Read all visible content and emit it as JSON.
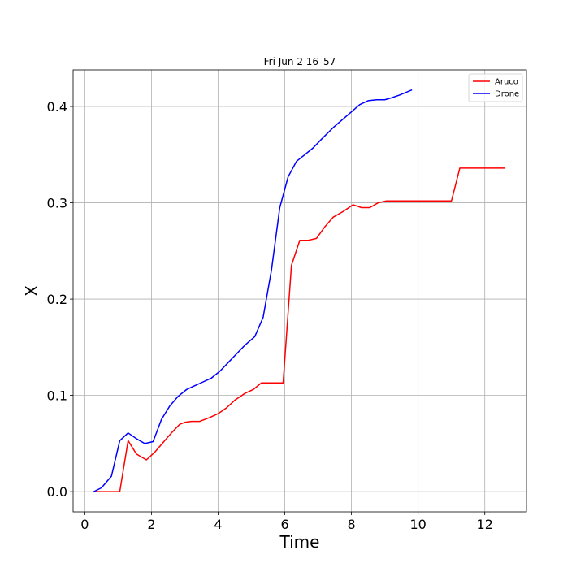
{
  "chart_data": {
    "type": "line",
    "title": "Fri Jun  2 16_57",
    "xlabel": "Time",
    "ylabel": "X",
    "xlim": [
      -0.35,
      13.25
    ],
    "ylim": [
      -0.021,
      0.438
    ],
    "xticks": [
      0,
      2,
      4,
      6,
      8,
      10,
      12
    ],
    "yticks": [
      0.0,
      0.1,
      0.2,
      0.3,
      0.4
    ],
    "grid": true,
    "legend_position": "top-right",
    "series": [
      {
        "name": "Aruco",
        "color": "#ff0000",
        "x": [
          0.27,
          0.5,
          0.75,
          1.05,
          1.3,
          1.55,
          1.85,
          2.1,
          2.35,
          2.6,
          2.85,
          3.0,
          3.2,
          3.45,
          3.75,
          4.0,
          4.25,
          4.5,
          4.8,
          5.05,
          5.3,
          5.55,
          5.8,
          5.95,
          6.2,
          6.45,
          6.7,
          6.95,
          7.2,
          7.45,
          7.75,
          8.05,
          8.3,
          8.55,
          8.8,
          9.05,
          9.3,
          9.6,
          9.9,
          10.2,
          10.5,
          10.8,
          11.0,
          11.25,
          11.5,
          11.8,
          12.1,
          12.4,
          12.6
        ],
        "y": [
          0.0,
          0.0,
          0.0,
          0.0,
          0.053,
          0.039,
          0.033,
          0.041,
          0.051,
          0.061,
          0.07,
          0.072,
          0.073,
          0.073,
          0.077,
          0.081,
          0.087,
          0.095,
          0.102,
          0.106,
          0.113,
          0.113,
          0.113,
          0.113,
          0.235,
          0.261,
          0.261,
          0.263,
          0.275,
          0.285,
          0.291,
          0.298,
          0.295,
          0.295,
          0.3,
          0.302,
          0.302,
          0.302,
          0.302,
          0.302,
          0.302,
          0.302,
          0.302,
          0.336,
          0.336,
          0.336,
          0.336,
          0.336,
          0.336
        ]
      },
      {
        "name": "Drone",
        "color": "#0000ff",
        "x": [
          0.27,
          0.5,
          0.8,
          1.05,
          1.3,
          1.55,
          1.8,
          2.05,
          2.3,
          2.55,
          2.8,
          3.05,
          3.3,
          3.55,
          3.8,
          4.05,
          4.3,
          4.55,
          4.8,
          5.1,
          5.35,
          5.6,
          5.85,
          6.1,
          6.35,
          6.6,
          6.85,
          7.1,
          7.45,
          7.75,
          8.05,
          8.25,
          8.5,
          8.75,
          9.0,
          9.2,
          9.45,
          9.8
        ],
        "y": [
          0.0,
          0.004,
          0.016,
          0.053,
          0.061,
          0.055,
          0.05,
          0.052,
          0.075,
          0.089,
          0.099,
          0.106,
          0.11,
          0.114,
          0.118,
          0.125,
          0.134,
          0.143,
          0.152,
          0.161,
          0.181,
          0.23,
          0.295,
          0.327,
          0.343,
          0.35,
          0.357,
          0.366,
          0.378,
          0.387,
          0.396,
          0.402,
          0.406,
          0.407,
          0.407,
          0.409,
          0.412,
          0.417
        ]
      }
    ]
  }
}
